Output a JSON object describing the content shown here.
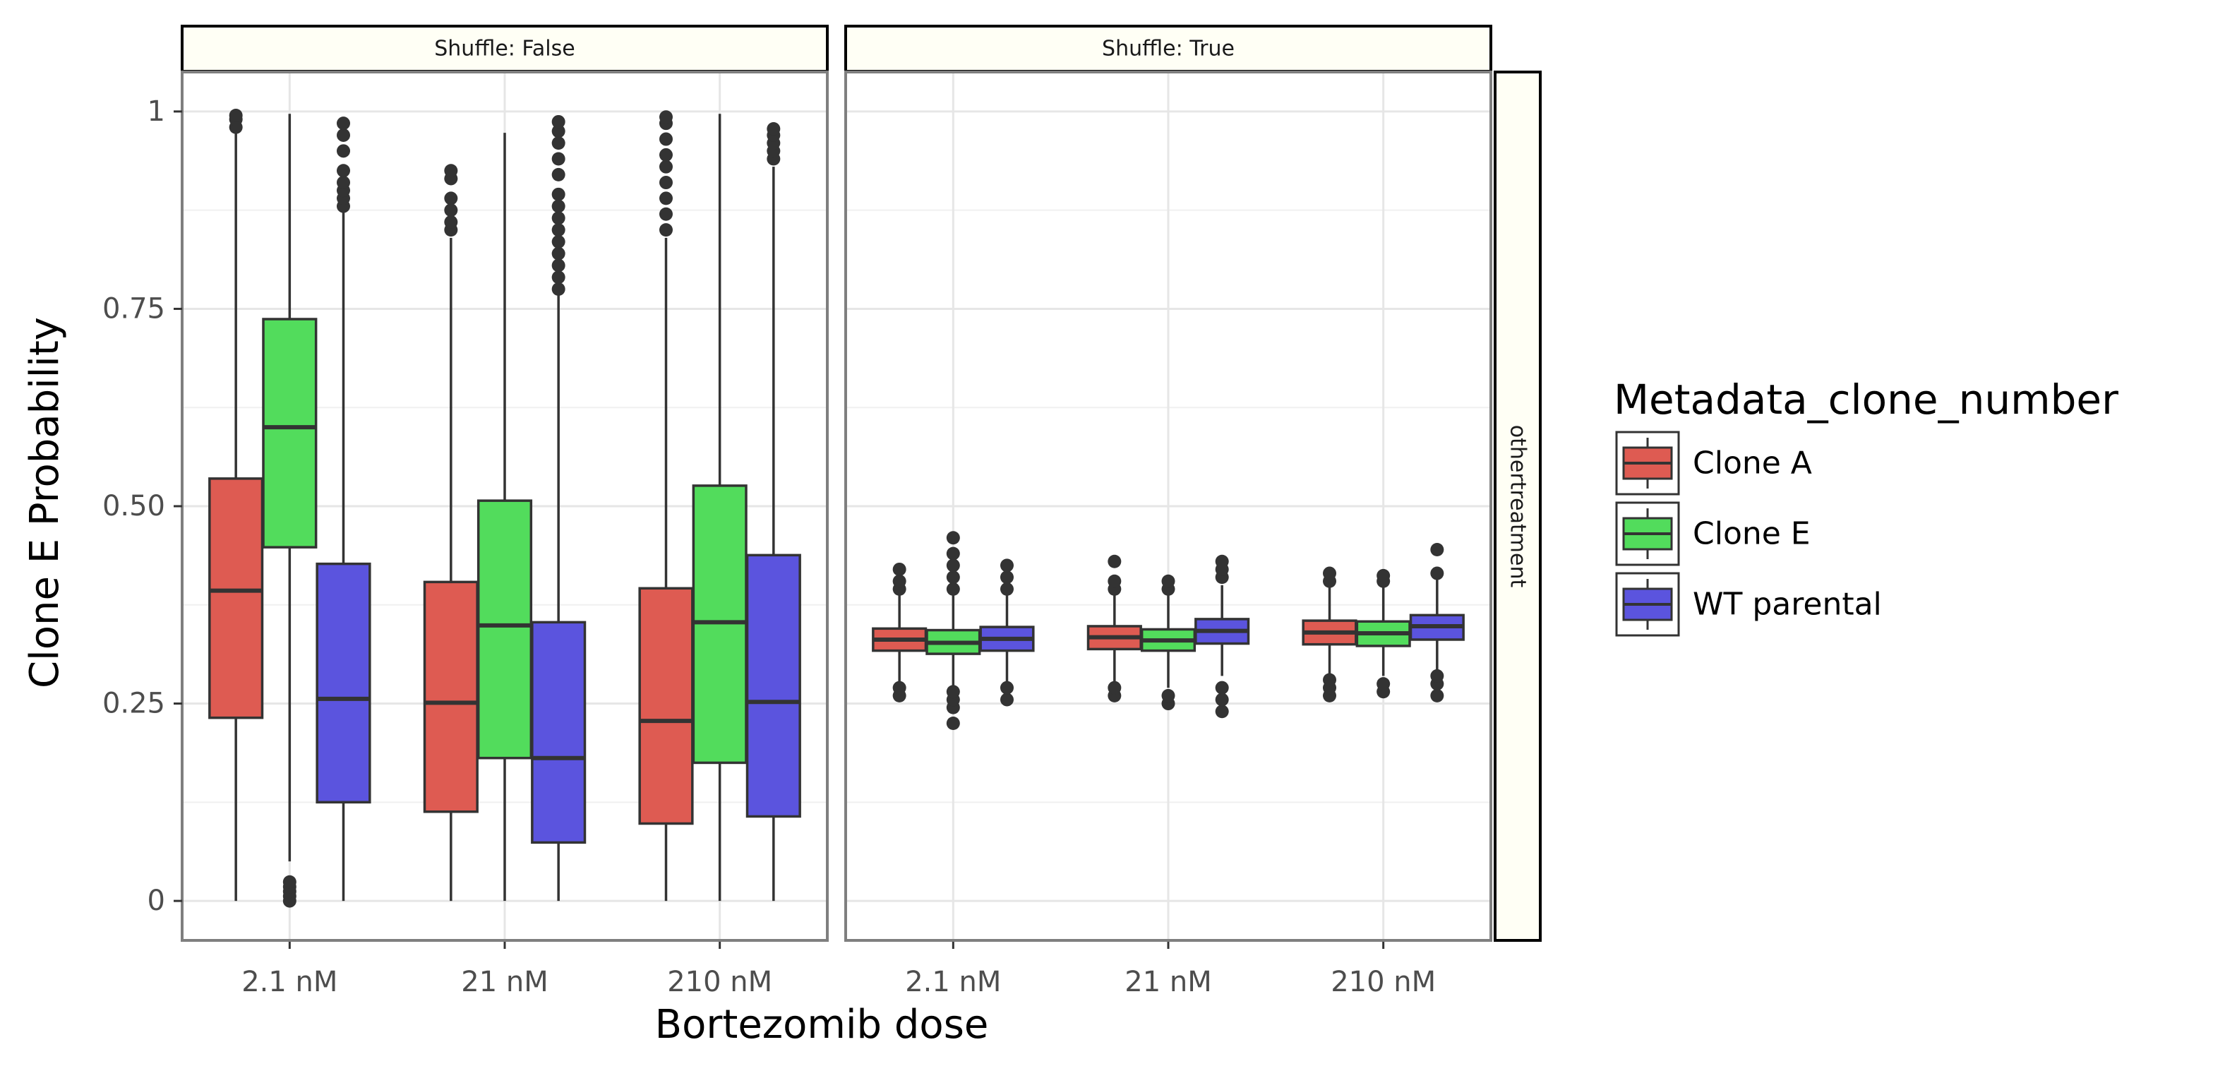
{
  "chart_data": {
    "type": "boxplot",
    "xlabel": "Bortezomib dose",
    "ylabel": "Clone E Probability",
    "ylim": [
      -0.05,
      1.05
    ],
    "y_ticks": [
      0,
      0.25,
      0.5,
      0.75,
      1
    ],
    "y_tick_labels": [
      "0",
      "0.25",
      "0.50",
      "0.75",
      "1"
    ],
    "categories": [
      "2.1 nM",
      "21 nM",
      "210 nM"
    ],
    "grid": true,
    "legend_position": "right",
    "legend_title": "Metadata_clone_number",
    "row_strip_label": "othertreatment",
    "series": [
      {
        "name": "Clone A",
        "color": "#de5b52"
      },
      {
        "name": "Clone E",
        "color": "#52dc5c"
      },
      {
        "name": "WT parental",
        "color": "#5b54de"
      }
    ],
    "panels": [
      {
        "label": "Shuffle: False",
        "boxes": [
          {
            "category": "2.1 nM",
            "series": "Clone A",
            "min": 0.0,
            "q1": 0.232,
            "median": 0.393,
            "q3": 0.535,
            "max": 0.975,
            "outliers": [
              0.98,
              0.99,
              0.995
            ]
          },
          {
            "category": "2.1 nM",
            "series": "Clone E",
            "min": 0.05,
            "q1": 0.448,
            "median": 0.6,
            "q3": 0.737,
            "max": 0.997,
            "outliers": [
              0.0,
              0.006,
              0.012,
              0.018,
              0.024
            ]
          },
          {
            "category": "2.1 nM",
            "series": "WT parental",
            "min": 0.0,
            "q1": 0.125,
            "median": 0.256,
            "q3": 0.427,
            "max": 0.875,
            "outliers": [
              0.88,
              0.89,
              0.9,
              0.91,
              0.925,
              0.95,
              0.97,
              0.985
            ]
          },
          {
            "category": "21 nM",
            "series": "Clone A",
            "min": 0.0,
            "q1": 0.113,
            "median": 0.251,
            "q3": 0.404,
            "max": 0.84,
            "outliers": [
              0.85,
              0.86,
              0.875,
              0.89,
              0.915,
              0.925
            ]
          },
          {
            "category": "21 nM",
            "series": "Clone E",
            "min": 0.0,
            "q1": 0.181,
            "median": 0.349,
            "q3": 0.507,
            "max": 0.973,
            "outliers": []
          },
          {
            "category": "21 nM",
            "series": "WT parental",
            "min": 0.0,
            "q1": 0.074,
            "median": 0.181,
            "q3": 0.353,
            "max": 0.77,
            "outliers": [
              0.775,
              0.79,
              0.805,
              0.82,
              0.835,
              0.85,
              0.865,
              0.88,
              0.895,
              0.92,
              0.94,
              0.96,
              0.975,
              0.987
            ]
          },
          {
            "category": "210 nM",
            "series": "Clone A",
            "min": 0.0,
            "q1": 0.098,
            "median": 0.228,
            "q3": 0.396,
            "max": 0.84,
            "outliers": [
              0.85,
              0.87,
              0.89,
              0.91,
              0.93,
              0.945,
              0.965,
              0.985,
              0.993
            ]
          },
          {
            "category": "210 nM",
            "series": "Clone E",
            "min": 0.0,
            "q1": 0.175,
            "median": 0.353,
            "q3": 0.526,
            "max": 0.997,
            "outliers": []
          },
          {
            "category": "210 nM",
            "series": "WT parental",
            "min": 0.0,
            "q1": 0.107,
            "median": 0.252,
            "q3": 0.438,
            "max": 0.93,
            "outliers": [
              0.94,
              0.95,
              0.96,
              0.97,
              0.978
            ]
          }
        ]
      },
      {
        "label": "Shuffle: True",
        "boxes": [
          {
            "category": "2.1 nM",
            "series": "Clone A",
            "min": 0.275,
            "q1": 0.317,
            "median": 0.331,
            "q3": 0.345,
            "max": 0.39,
            "outliers": [
              0.26,
              0.27,
              0.395,
              0.405,
              0.42
            ]
          },
          {
            "category": "2.1 nM",
            "series": "Clone E",
            "min": 0.27,
            "q1": 0.313,
            "median": 0.327,
            "q3": 0.343,
            "max": 0.39,
            "outliers": [
              0.225,
              0.245,
              0.255,
              0.265,
              0.395,
              0.41,
              0.425,
              0.44,
              0.46
            ]
          },
          {
            "category": "2.1 nM",
            "series": "WT parental",
            "min": 0.275,
            "q1": 0.317,
            "median": 0.332,
            "q3": 0.347,
            "max": 0.39,
            "outliers": [
              0.255,
              0.27,
              0.395,
              0.41,
              0.425
            ]
          },
          {
            "category": "21 nM",
            "series": "Clone A",
            "min": 0.275,
            "q1": 0.319,
            "median": 0.334,
            "q3": 0.348,
            "max": 0.39,
            "outliers": [
              0.26,
              0.27,
              0.395,
              0.405,
              0.43
            ]
          },
          {
            "category": "21 nM",
            "series": "Clone E",
            "min": 0.27,
            "q1": 0.317,
            "median": 0.33,
            "q3": 0.344,
            "max": 0.39,
            "outliers": [
              0.25,
              0.26,
              0.395,
              0.405
            ]
          },
          {
            "category": "21 nM",
            "series": "WT parental",
            "min": 0.285,
            "q1": 0.326,
            "median": 0.342,
            "q3": 0.357,
            "max": 0.4,
            "outliers": [
              0.24,
              0.255,
              0.27,
              0.41,
              0.42,
              0.43
            ]
          },
          {
            "category": "210 nM",
            "series": "Clone A",
            "min": 0.285,
            "q1": 0.325,
            "median": 0.34,
            "q3": 0.355,
            "max": 0.4,
            "outliers": [
              0.26,
              0.27,
              0.28,
              0.405,
              0.415
            ]
          },
          {
            "category": "210 nM",
            "series": "Clone E",
            "min": 0.285,
            "q1": 0.323,
            "median": 0.339,
            "q3": 0.354,
            "max": 0.4,
            "outliers": [
              0.265,
              0.275,
              0.405,
              0.412
            ]
          },
          {
            "category": "210 nM",
            "series": "WT parental",
            "min": 0.29,
            "q1": 0.331,
            "median": 0.348,
            "q3": 0.362,
            "max": 0.41,
            "outliers": [
              0.26,
              0.275,
              0.285,
              0.415,
              0.445
            ]
          }
        ]
      }
    ]
  }
}
